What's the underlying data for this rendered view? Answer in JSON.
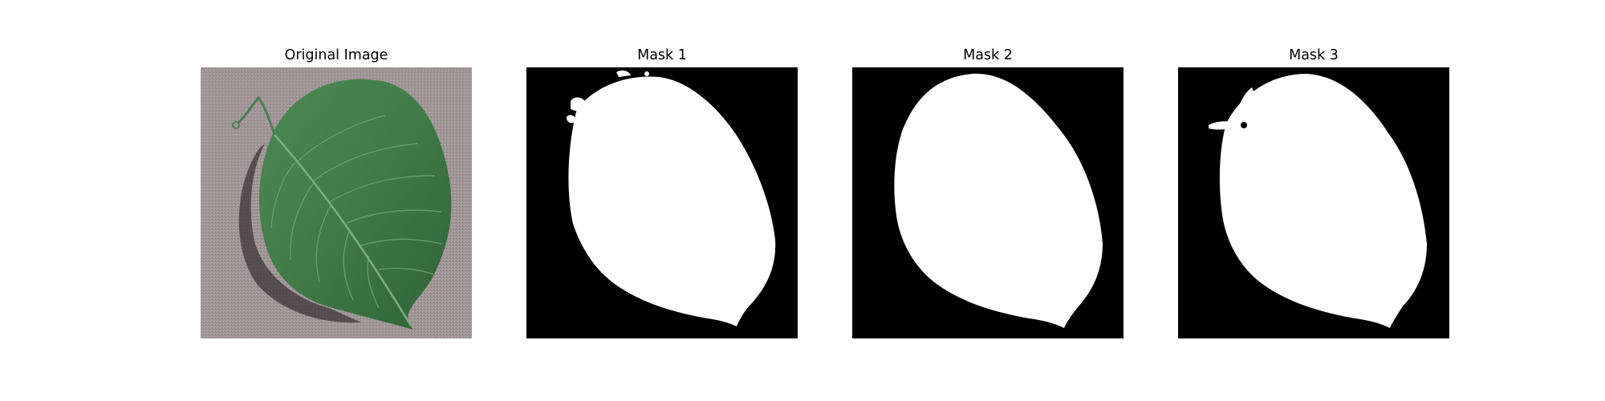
{
  "figure": {
    "panels": [
      {
        "title": "Original Image",
        "content": "leaf photograph on gray background"
      },
      {
        "title": "Mask 1",
        "content": "binary segmentation mask"
      },
      {
        "title": "Mask 2",
        "content": "binary segmentation mask"
      },
      {
        "title": "Mask 3",
        "content": "binary segmentation mask"
      }
    ],
    "colors": {
      "background_gray": "#9e9194",
      "leaf_green": "#3f7a47",
      "mask_foreground": "#ffffff",
      "mask_background": "#000000"
    }
  }
}
